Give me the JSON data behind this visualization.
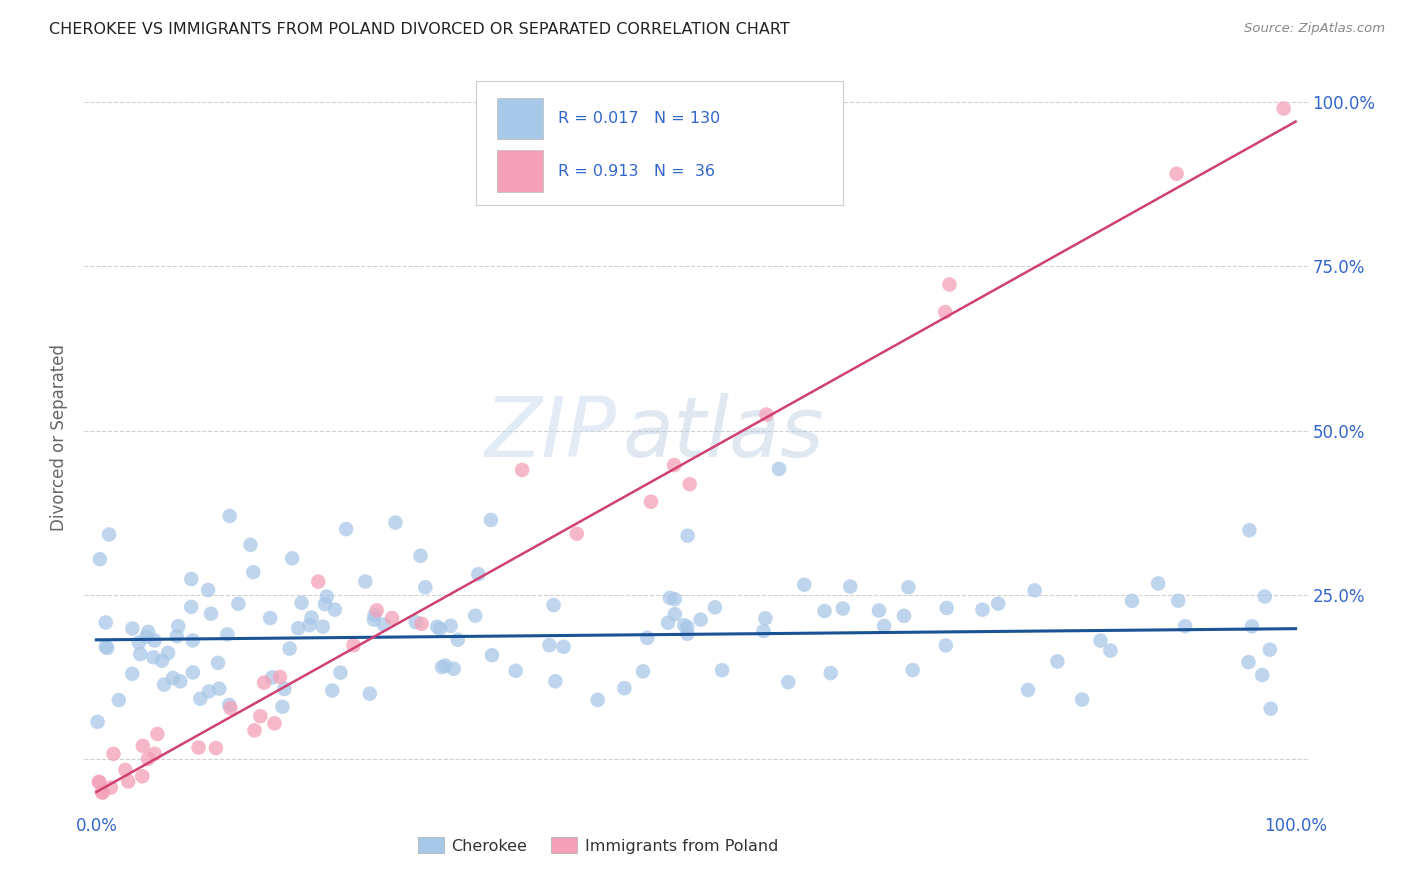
{
  "title": "CHEROKEE VS IMMIGRANTS FROM POLAND DIVORCED OR SEPARATED CORRELATION CHART",
  "source": "Source: ZipAtlas.com",
  "ylabel": "Divorced or Separated",
  "blue_R": 0.017,
  "blue_N": 130,
  "pink_R": 0.913,
  "pink_N": 36,
  "blue_color": "#a8c8e8",
  "pink_color": "#f4a0b8",
  "blue_line_color": "#1a5296",
  "pink_line_color": "#d04070",
  "watermark_zip": "ZIP",
  "watermark_atlas": "atlas",
  "background_color": "#ffffff",
  "grid_color": "#cccccc",
  "tick_color": "#3366cc",
  "legend_text_color": "#3366cc",
  "legend_label_color": "#333333"
}
